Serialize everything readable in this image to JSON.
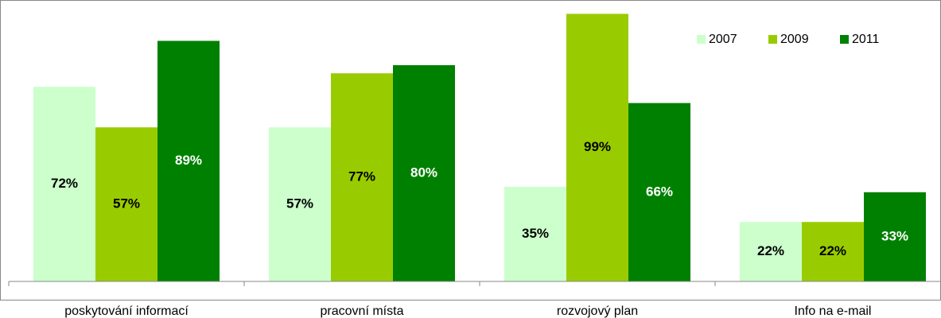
{
  "chart_data": {
    "type": "bar",
    "categories": [
      "poskytování informací",
      "pracovní místa",
      "rozvojový plan",
      "Info na e-mail"
    ],
    "series": [
      {
        "name": "2007",
        "color": "#ccffcc",
        "values": [
          72,
          57,
          35,
          22
        ],
        "value_labels": [
          "72%",
          "57%",
          "35%",
          "22%"
        ]
      },
      {
        "name": "2009",
        "color": "#99cc00",
        "values": [
          57,
          77,
          99,
          22
        ],
        "value_labels": [
          "57%",
          "77%",
          "99%",
          "22%"
        ]
      },
      {
        "name": "2011",
        "color": "#008000",
        "values": [
          89,
          80,
          66,
          33
        ],
        "value_labels": [
          "89%",
          "80%",
          "66%",
          "33%"
        ]
      }
    ],
    "ylim": [
      0,
      100
    ],
    "legend": "top-right"
  }
}
